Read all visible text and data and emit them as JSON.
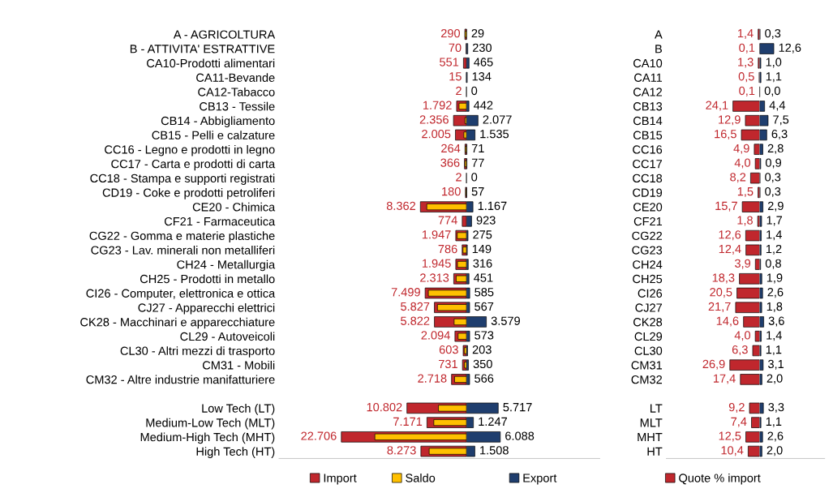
{
  "chart_data": [
    {
      "type": "bar",
      "orientation": "horizontal",
      "legend": "bottom",
      "tick_labels": "y",
      "xlim": [
        34000,
        0
      ],
      "categories": [
        "A - AGRICOLTURA",
        "B - ATTIVITA' ESTRATTIVE",
        "CA10-Prodotti alimentari",
        "CA11-Bevande",
        "CA12-Tabacco",
        "CB13 - Tessile",
        "CB14 - Abbigliamento",
        "CB15 - Pelli e calzature",
        "CC16 - Legno e prodotti in legno",
        "CC17 - Carta e prodotti di carta",
        "CC18 - Stampa e supporti registrati",
        "CD19 - Coke e prodotti petroliferi",
        "CE20 - Chimica",
        "CF21 - Farmaceutica",
        "CG22 - Gomma e materie plastiche",
        "CG23 - Lav. minerali non metalliferi",
        "CH24 - Metallurgia",
        "CH25 - Prodotti in metallo",
        "CI26 - Computer, elettronica e ottica",
        "CJ27 - Apparecchi elettrici",
        "CK28 - Macchinari e apparecchiature",
        "CL29 - Autoveicoli",
        "CL30 - Altri mezzi di trasporto",
        "CM31 - Mobili",
        "CM32 - Altre industrie manifatturiere",
        null,
        "Low Tech (LT)",
        "Medium-Low Tech (MLT)",
        "Medium-High Tech (MHT)",
        "High Tech (HT)"
      ],
      "series": [
        {
          "name": "Import",
          "color": "#c0272d",
          "values": [
            290,
            70,
            551,
            15,
            2,
            1792,
            2356,
            2005,
            264,
            366,
            2,
            180,
            8362,
            774,
            1947,
            786,
            1945,
            2313,
            7499,
            5827,
            5822,
            2094,
            603,
            731,
            2718,
            null,
            10802,
            7171,
            22706,
            8273
          ],
          "value_labels": [
            "290",
            "70",
            "551",
            "15",
            "2",
            "1.792",
            "2.356",
            "2.005",
            "264",
            "366",
            "2",
            "180",
            "8.362",
            "774",
            "1.947",
            "786",
            "1.945",
            "2.313",
            "7.499",
            "5.827",
            "5.822",
            "2.094",
            "603",
            "731",
            "2.718",
            null,
            "10.802",
            "7.171",
            "22.706",
            "8.273"
          ]
        },
        {
          "name": "Saldo",
          "color": "#ffc000",
          "values": [
            261,
            null,
            null,
            null,
            null,
            1350,
            279,
            470,
            193,
            289,
            null,
            123,
            7195,
            null,
            1672,
            637,
            1629,
            1862,
            6914,
            5260,
            2243,
            1521,
            400,
            381,
            2152,
            null,
            5085,
            5924,
            16618,
            6765
          ]
        }
      ]
    },
    {
      "type": "bar",
      "orientation": "horizontal",
      "legend": "bottom",
      "tick_labels": false,
      "xlim": [
        0,
        24000
      ],
      "categories": [
        null,
        null,
        null,
        null,
        null,
        null,
        null,
        null,
        null,
        null,
        null,
        null,
        null,
        null,
        null,
        null,
        null,
        null,
        null,
        null,
        null,
        null,
        null,
        null,
        null,
        null,
        null,
        null,
        null,
        null
      ],
      "series": [
        {
          "name": "Export",
          "color": "#1f3e6e",
          "values": [
            29,
            230,
            465,
            134,
            0,
            442,
            2077,
            1535,
            71,
            77,
            0,
            57,
            1167,
            923,
            275,
            149,
            316,
            451,
            585,
            567,
            3579,
            573,
            203,
            350,
            566,
            null,
            5717,
            1247,
            6088,
            1508
          ],
          "value_labels": [
            "29",
            "230",
            "465",
            "134",
            "0",
            "442",
            "2.077",
            "1.535",
            "71",
            "77",
            "0",
            "57",
            "1.167",
            "923",
            "275",
            "149",
            "316",
            "451",
            "585",
            "567",
            "3.579",
            "573",
            "203",
            "350",
            "566",
            null,
            "5.717",
            "1.247",
            "6.088",
            "1.508"
          ]
        }
      ]
    },
    {
      "type": "bar",
      "orientation": "horizontal",
      "legend": "bottom",
      "tick_labels": "y",
      "xlim": [
        84,
        0
      ],
      "categories": [
        "A",
        "B",
        "CA10",
        "CA11",
        "CA12",
        "CB13",
        "CB14",
        "CB15",
        "CC16",
        "CC17",
        "CC18",
        "CD19",
        "CE20",
        "CF21",
        "CG22",
        "CG23",
        "CH24",
        "CH25",
        "CI26",
        "CJ27",
        "CK28",
        "CL29",
        "CL30",
        "CM31",
        "CM32",
        null,
        "LT",
        "MLT",
        "MHT",
        "HT"
      ],
      "series": [
        {
          "name": "Quote % import",
          "color": "#c0272d",
          "values": [
            1.4,
            0.1,
            1.3,
            0.5,
            0.1,
            24.1,
            12.9,
            16.5,
            4.9,
            4.0,
            8.2,
            1.5,
            15.7,
            1.8,
            12.6,
            12.4,
            3.9,
            18.3,
            20.5,
            21.7,
            14.6,
            4.0,
            6.3,
            26.9,
            17.4,
            null,
            9.2,
            7.4,
            12.5,
            10.4
          ],
          "value_labels": [
            "1,4",
            "0,1",
            "1,3",
            "0,5",
            "0,1",
            "24,1",
            "12,9",
            "16,5",
            "4,9",
            "4,0",
            "8,2",
            "1,5",
            "15,7",
            "1,8",
            "12,6",
            "12,4",
            "3,9",
            "18,3",
            "20,5",
            "21,7",
            "14,6",
            "4,0",
            "6,3",
            "26,9",
            "17,4",
            null,
            "9,2",
            "7,4",
            "12,5",
            "10,4"
          ]
        }
      ]
    },
    {
      "type": "bar",
      "orientation": "horizontal",
      "tick_labels": false,
      "xlim": [
        0,
        58
      ],
      "categories": [
        null,
        null,
        null,
        null,
        null,
        null,
        null,
        null,
        null,
        null,
        null,
        null,
        null,
        null,
        null,
        null,
        null,
        null,
        null,
        null,
        null,
        null,
        null,
        null,
        null,
        null,
        null,
        null,
        null,
        null
      ],
      "series": [
        {
          "color": "#1f3e6e",
          "values": [
            0.3,
            12.6,
            1.0,
            1.1,
            0.0,
            4.4,
            7.5,
            6.3,
            2.8,
            0.9,
            0.3,
            0.3,
            2.9,
            1.7,
            1.4,
            1.2,
            0.8,
            1.9,
            2.6,
            1.8,
            3.6,
            1.4,
            1.1,
            3.1,
            2.0,
            null,
            3.3,
            1.1,
            2.6,
            2.0
          ],
          "value_labels": [
            "0,3",
            "12,6",
            "1,0",
            "1,1",
            "0,0",
            "4,4",
            "7,5",
            "6,3",
            "2,8",
            "0,9",
            "0,3",
            "0,3",
            "2,9",
            "1,7",
            "1,4",
            "1,2",
            "0,8",
            "1,9",
            "2,6",
            "1,8",
            "3,6",
            "1,4",
            "1,1",
            "3,1",
            "2,0",
            null,
            "3,3",
            "1,1",
            "2,6",
            "2,0"
          ]
        }
      ]
    }
  ]
}
